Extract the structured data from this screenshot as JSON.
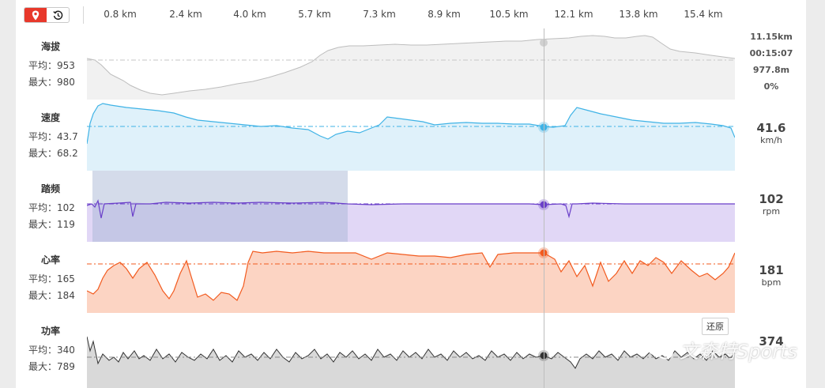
{
  "toolbar": {
    "icons": [
      "map-pin-icon",
      "history-icon"
    ],
    "active_color": "#e8382b"
  },
  "axis": {
    "ticks": [
      "0.8 km",
      "2.4 km",
      "4.0 km",
      "5.7 km",
      "7.3 km",
      "8.9 km",
      "10.5 km",
      "12.1 km",
      "13.8 km",
      "15.4 km"
    ]
  },
  "cursor": {
    "distance": "11.15km",
    "time": "00:15:07",
    "elevation": "977.8m",
    "grade": "0%"
  },
  "metrics": {
    "elevation": {
      "title": "海拔",
      "avg": "平均：953",
      "max": "最大：980",
      "color": "#cfcfcf"
    },
    "speed": {
      "title": "速度",
      "avg": "平均：43.7",
      "max": "最大：68.2",
      "value": "41.6",
      "unit": "km/h",
      "color": "#3fb3e6"
    },
    "cadence": {
      "title": "踏频",
      "avg": "平均：102",
      "max": "最大：119",
      "value": "102",
      "unit": "rpm",
      "color": "#6a3fc9"
    },
    "heart": {
      "title": "心率",
      "avg": "平均：165",
      "max": "最大：184",
      "value": "181",
      "unit": "bpm",
      "color": "#f25a1e"
    },
    "power": {
      "title": "功率",
      "avg": "平均：340",
      "max": "最大：789",
      "value": "374",
      "unit": "",
      "color": "#333333"
    }
  },
  "restore_label": "还原",
  "watermark": "文森特Sports"
}
